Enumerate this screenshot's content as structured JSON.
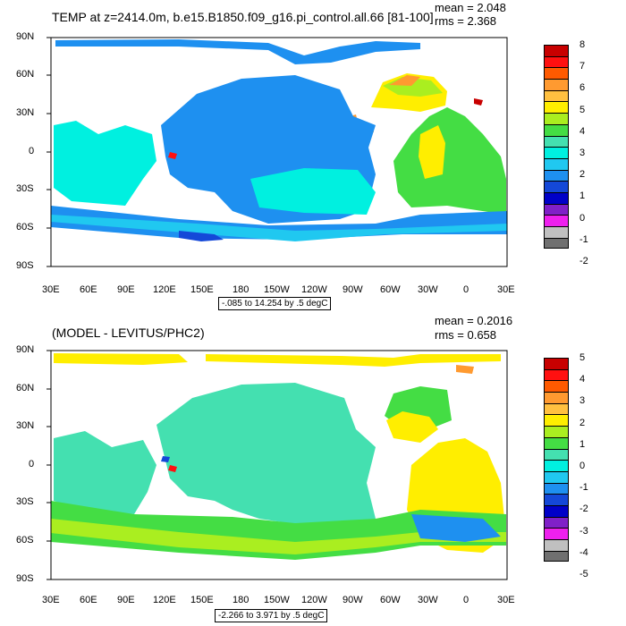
{
  "panel1": {
    "title": "TEMP at z=2414.0m, b.e15.B1850.f09_g16.pi_control.all.66 [81-100]",
    "mean": "mean = 2.048",
    "rms": "rms = 2.368",
    "range": "-.085 to 14.254 by .5 degC",
    "lat_labels": [
      "90N",
      "60N",
      "30N",
      "0",
      "30S",
      "60S",
      "90S"
    ],
    "lon_labels": [
      "30E",
      "60E",
      "90E",
      "120E",
      "150E",
      "180",
      "150W",
      "120W",
      "90W",
      "60W",
      "30W",
      "0",
      "30E"
    ],
    "legend_labels": [
      "8",
      "7",
      "6",
      "5",
      "4",
      "3",
      "2",
      "1",
      "0",
      "-1",
      "-2"
    ],
    "legend_colors": [
      "#c80000",
      "#ff1010",
      "#ff5a00",
      "#ff9a30",
      "#ffc040",
      "#ffee00",
      "#aaee20",
      "#44dd44",
      "#44e0b0",
      "#00f0e0",
      "#20c8f0",
      "#1e90f0",
      "#1448d8",
      "#0000c8",
      "#8020c8",
      "#ee20ee",
      "#c0c0c0",
      "#707070"
    ]
  },
  "panel2": {
    "title": "(MODEL - LEVITUS/PHC2)",
    "mean": "mean = 0.2016",
    "rms": "rms = 0.658",
    "range": "-2.266 to 3.971 by .5 degC",
    "lat_labels": [
      "90N",
      "60N",
      "30N",
      "0",
      "30S",
      "60S",
      "90S"
    ],
    "lon_labels": [
      "30E",
      "60E",
      "90E",
      "120E",
      "150E",
      "180",
      "150W",
      "120W",
      "90W",
      "60W",
      "30W",
      "0",
      "30E"
    ],
    "legend_labels": [
      "5",
      "4",
      "3",
      "2",
      "1",
      "0",
      "-1",
      "-2",
      "-3",
      "-4",
      "-5"
    ],
    "legend_colors": [
      "#c80000",
      "#ff1010",
      "#ff5a00",
      "#ff9a30",
      "#ffc040",
      "#ffee00",
      "#aaee20",
      "#44dd44",
      "#44e0b0",
      "#00f0e0",
      "#20c8f0",
      "#1e90f0",
      "#1448d8",
      "#0000c8",
      "#8020c8",
      "#ee20ee",
      "#c0c0c0",
      "#707070"
    ]
  }
}
